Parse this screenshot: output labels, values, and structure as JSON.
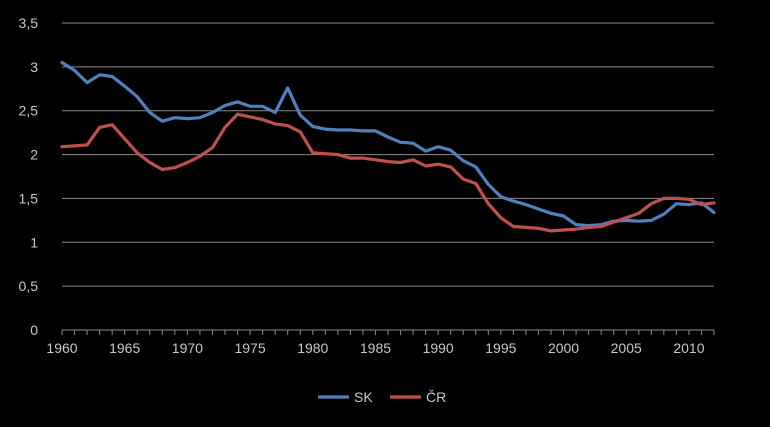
{
  "chart_data": {
    "type": "line",
    "title": "",
    "xlabel": "",
    "ylabel": "",
    "xlim": [
      1960,
      2012
    ],
    "ylim": [
      0,
      3.5
    ],
    "y_ticks": [
      "0",
      "0,5",
      "1",
      "1,5",
      "2",
      "2,5",
      "3",
      "3,5"
    ],
    "y_tick_values": [
      0,
      0.5,
      1,
      1.5,
      2,
      2.5,
      3,
      3.5
    ],
    "x_ticks": [
      "1960",
      "1965",
      "1970",
      "1975",
      "1980",
      "1985",
      "1990",
      "1995",
      "2000",
      "2005",
      "2010"
    ],
    "x_tick_values": [
      1960,
      1965,
      1970,
      1975,
      1980,
      1985,
      1990,
      1995,
      2000,
      2005,
      2010
    ],
    "grid": true,
    "legend_position": "bottom",
    "x": [
      1960,
      1961,
      1962,
      1963,
      1964,
      1965,
      1966,
      1967,
      1968,
      1969,
      1970,
      1971,
      1972,
      1973,
      1974,
      1975,
      1976,
      1977,
      1978,
      1979,
      1980,
      1981,
      1982,
      1983,
      1984,
      1985,
      1986,
      1987,
      1988,
      1989,
      1990,
      1991,
      1992,
      1993,
      1994,
      1995,
      1996,
      1997,
      1998,
      1999,
      2000,
      2001,
      2002,
      2003,
      2004,
      2005,
      2006,
      2007,
      2008,
      2009,
      2010,
      2011,
      2012
    ],
    "series": [
      {
        "name": "SK",
        "color": "#4f81bd",
        "values": [
          3.05,
          2.96,
          2.82,
          2.91,
          2.89,
          2.78,
          2.66,
          2.48,
          2.38,
          2.42,
          2.41,
          2.42,
          2.48,
          2.56,
          2.6,
          2.55,
          2.55,
          2.48,
          2.76,
          2.45,
          2.32,
          2.29,
          2.28,
          2.28,
          2.27,
          2.27,
          2.2,
          2.14,
          2.13,
          2.04,
          2.09,
          2.05,
          1.93,
          1.86,
          1.66,
          1.52,
          1.47,
          1.43,
          1.38,
          1.33,
          1.3,
          1.2,
          1.19,
          1.2,
          1.24,
          1.25,
          1.24,
          1.25,
          1.32,
          1.44,
          1.43,
          1.45,
          1.34
        ]
      },
      {
        "name": "ČR",
        "color": "#c0504d",
        "values": [
          2.09,
          2.1,
          2.11,
          2.31,
          2.34,
          2.18,
          2.02,
          1.91,
          1.83,
          1.85,
          1.91,
          1.98,
          2.08,
          2.31,
          2.46,
          2.43,
          2.4,
          2.35,
          2.33,
          2.26,
          2.02,
          2.01,
          2.0,
          1.96,
          1.96,
          1.94,
          1.92,
          1.91,
          1.94,
          1.87,
          1.89,
          1.86,
          1.72,
          1.67,
          1.44,
          1.28,
          1.18,
          1.17,
          1.16,
          1.13,
          1.14,
          1.15,
          1.17,
          1.18,
          1.23,
          1.28,
          1.33,
          1.44,
          1.5,
          1.5,
          1.49,
          1.43,
          1.45
        ]
      }
    ]
  }
}
